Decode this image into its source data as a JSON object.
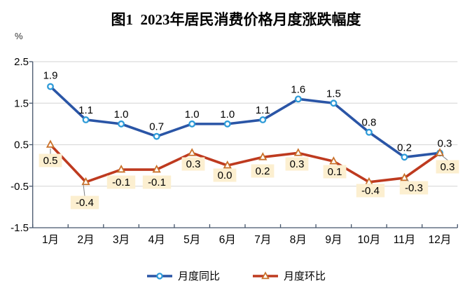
{
  "chart_data": {
    "type": "line",
    "title": "图1  2023年居民消费价格月度涨跌幅度",
    "unit_label": "%",
    "categories": [
      "1月",
      "2月",
      "3月",
      "4月",
      "5月",
      "6月",
      "7月",
      "8月",
      "9月",
      "10月",
      "11月",
      "12月"
    ],
    "series": [
      {
        "name": "月度同比",
        "marker": "circle",
        "line_color": "#2A55A6",
        "marker_color": "#2E9BD8",
        "label_background": "none",
        "label_position": "above",
        "values": [
          1.9,
          1.1,
          1.0,
          0.7,
          1.0,
          1.0,
          1.1,
          1.6,
          1.5,
          0.8,
          0.2,
          0.3
        ]
      },
      {
        "name": "月度环比",
        "marker": "triangle",
        "line_color": "#BE3A1F",
        "marker_color": "#C9712A",
        "label_background": "#FCEFD0",
        "label_position": "below",
        "values": [
          0.5,
          -0.4,
          -0.1,
          -0.1,
          0.3,
          0.0,
          0.2,
          0.3,
          0.1,
          -0.4,
          -0.3,
          0.3
        ]
      }
    ],
    "y_ticks": [
      2.5,
      1.5,
      0.5,
      -0.5,
      -1.5
    ],
    "ylim": [
      -1.5,
      2.5
    ],
    "grid": true,
    "legend_position": "bottom",
    "axis_color": "#44546A",
    "grid_color": "#DCDCDC",
    "leader_line_color": "#808080"
  }
}
